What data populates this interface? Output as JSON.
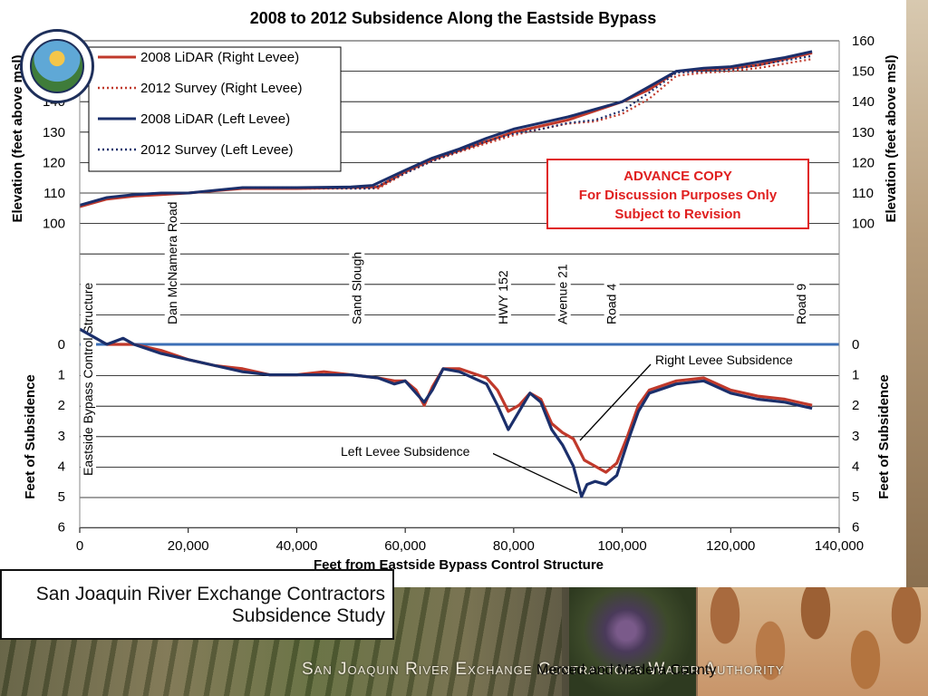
{
  "chart_data": {
    "type": "line",
    "title": "2008 to 2012 Subsidence Along the Eastside Bypass",
    "xlabel": "Feet from Eastside Bypass Control Structure",
    "xlim": [
      0,
      140000
    ],
    "x_ticks": [
      "0",
      "20,000",
      "40,000",
      "60,000",
      "80,000",
      "100,000",
      "120,000",
      "140,000"
    ],
    "elevation": {
      "ylabel": "Elevation (feet above msl)",
      "ylim": [
        100,
        160
      ],
      "y_ticks": [
        "100",
        "110",
        "120",
        "130",
        "140",
        "150",
        "160"
      ],
      "series": [
        {
          "name": "2008 LiDAR (Right Levee)",
          "style": "solid",
          "color": "#c0392b",
          "x": [
            0,
            5000,
            10000,
            15000,
            20000,
            30000,
            40000,
            50000,
            55000,
            60000,
            65000,
            70000,
            75000,
            80000,
            85000,
            90000,
            95000,
            100000,
            105000,
            110000,
            115000,
            120000,
            125000,
            130000,
            135000
          ],
          "y": [
            105.5,
            108,
            109,
            109.5,
            110,
            111.5,
            111.5,
            111.8,
            112,
            117,
            121,
            124,
            127,
            130,
            132,
            134,
            137,
            140,
            144,
            150,
            150.5,
            151,
            152,
            154,
            156
          ]
        },
        {
          "name": "2012 Survey (Right Levee)",
          "style": "dotted",
          "color": "#c0392b",
          "x": [
            0,
            5000,
            10000,
            15000,
            20000,
            30000,
            40000,
            50000,
            55000,
            60000,
            65000,
            70000,
            75000,
            80000,
            85000,
            90000,
            95000,
            100000,
            105000,
            110000,
            115000,
            120000,
            125000,
            130000,
            135000
          ],
          "y": [
            105.5,
            108,
            109,
            109.5,
            110,
            111.5,
            111.5,
            111.5,
            111.5,
            116.5,
            120.5,
            123.5,
            126.3,
            129,
            131,
            132.8,
            133.5,
            136,
            141,
            148.5,
            149.5,
            150,
            151,
            152.5,
            154
          ]
        },
        {
          "name": "2008 LiDAR (Left Levee)",
          "style": "solid",
          "color": "#1b2f6b",
          "x": [
            0,
            5000,
            10000,
            15000,
            20000,
            30000,
            40000,
            50000,
            54000,
            60000,
            65000,
            70000,
            75000,
            80000,
            85000,
            90000,
            95000,
            100000,
            105000,
            110000,
            115000,
            120000,
            125000,
            130000,
            135000
          ],
          "y": [
            106,
            108.5,
            109.5,
            110,
            110,
            111.8,
            111.8,
            112,
            112.5,
            117.5,
            121.5,
            124.5,
            128,
            131,
            133,
            135,
            137.5,
            140,
            145,
            150,
            151,
            151.5,
            153,
            154.5,
            156.5
          ]
        },
        {
          "name": "2012 Survey (Left Levee)",
          "style": "dotted",
          "color": "#1b2f6b",
          "x": [
            0,
            5000,
            10000,
            15000,
            20000,
            30000,
            40000,
            50000,
            54000,
            60000,
            65000,
            70000,
            75000,
            80000,
            85000,
            90000,
            95000,
            100000,
            105000,
            110000,
            115000,
            120000,
            125000,
            130000,
            135000
          ],
          "y": [
            106,
            108.5,
            109.5,
            110,
            110,
            111.8,
            111.8,
            111.5,
            111.5,
            116.5,
            120.5,
            123.8,
            127,
            129.5,
            131,
            133,
            134,
            137,
            143,
            149.5,
            150,
            150.5,
            152,
            153.5,
            155
          ]
        }
      ],
      "legend": [
        "2008 LiDAR (Right Levee)",
        "2012 Survey (Right Levee)",
        "2008 LiDAR (Left Levee)",
        "2012 Survey (Left Levee)"
      ],
      "note": [
        "ADVANCE COPY",
        "For Discussion Purposes Only",
        "Subject to Revision"
      ]
    },
    "subsidence": {
      "ylabel": "Feet of Subsidence",
      "ylim": [
        0,
        6
      ],
      "y_ticks": [
        "0",
        "1",
        "2",
        "3",
        "4",
        "5",
        "6"
      ],
      "series": [
        {
          "name": "Right Levee Subsidence",
          "color": "#c0392b",
          "x": [
            5000,
            8000,
            10000,
            15000,
            20000,
            25000,
            30000,
            35000,
            40000,
            45000,
            50000,
            55000,
            58000,
            60000,
            62000,
            63500,
            65000,
            67000,
            70000,
            75000,
            77000,
            79000,
            81000,
            83000,
            85000,
            87000,
            89000,
            91000,
            93000,
            95000,
            97000,
            99000,
            101000,
            103000,
            105000,
            110000,
            115000,
            120000,
            125000,
            130000,
            135000
          ],
          "y": [
            0,
            0,
            0,
            0.2,
            0.5,
            0.7,
            0.8,
            1.0,
            1.0,
            0.9,
            1.0,
            1.1,
            1.2,
            1.2,
            1.5,
            2.0,
            1.4,
            0.8,
            0.8,
            1.1,
            1.5,
            2.2,
            2.0,
            1.6,
            1.8,
            2.6,
            2.9,
            3.1,
            3.8,
            4.0,
            4.2,
            3.9,
            3.0,
            2.0,
            1.5,
            1.2,
            1.1,
            1.5,
            1.7,
            1.8,
            2.0
          ]
        },
        {
          "name": "Left Levee Subsidence",
          "color": "#1b2f6b",
          "x": [
            0,
            3000,
            5000,
            8000,
            10000,
            15000,
            20000,
            25000,
            30000,
            35000,
            40000,
            45000,
            50000,
            55000,
            58000,
            60000,
            62000,
            63500,
            65000,
            67000,
            70000,
            75000,
            77000,
            79000,
            81000,
            83000,
            85000,
            87000,
            89000,
            91000,
            92500,
            93500,
            95000,
            97000,
            99000,
            101000,
            103000,
            105000,
            110000,
            115000,
            120000,
            125000,
            130000,
            135000
          ],
          "y": [
            -0.5,
            -0.2,
            0,
            -0.2,
            0,
            0.3,
            0.5,
            0.7,
            0.9,
            1.0,
            1.0,
            1.0,
            1.0,
            1.1,
            1.3,
            1.2,
            1.6,
            1.9,
            1.5,
            0.8,
            0.9,
            1.3,
            2.0,
            2.8,
            2.2,
            1.6,
            1.9,
            2.8,
            3.3,
            4.0,
            5.0,
            4.6,
            4.5,
            4.6,
            4.3,
            3.2,
            2.2,
            1.6,
            1.3,
            1.2,
            1.6,
            1.8,
            1.9,
            2.1
          ]
        }
      ],
      "annotations": [
        "Right Levee Subsidence",
        "Left Levee Subsidence"
      ]
    },
    "landmarks": [
      {
        "label": "Eastside Bypass Control Structure",
        "x": 1500
      },
      {
        "label": "Dan McNamera Road",
        "x": 17000
      },
      {
        "label": "Sand Slough",
        "x": 51000
      },
      {
        "label": "HWY 152",
        "x": 78000
      },
      {
        "label": "Avenue 21",
        "x": 89000
      },
      {
        "label": "Road 4",
        "x": 98000
      },
      {
        "label": "Road 9",
        "x": 133000
      }
    ]
  },
  "footer": {
    "study_line1": "San Joaquin River Exchange Contractors",
    "study_line2": "Subsidence Study",
    "authority": "San Joaquin River Exchange Contractors Water Authority",
    "overlay": "Merced and Madera County"
  },
  "colors": {
    "right": "#c0392b",
    "left": "#1b2f6b",
    "zero_line": "#3b6fb6",
    "note_red": "#e02020"
  }
}
